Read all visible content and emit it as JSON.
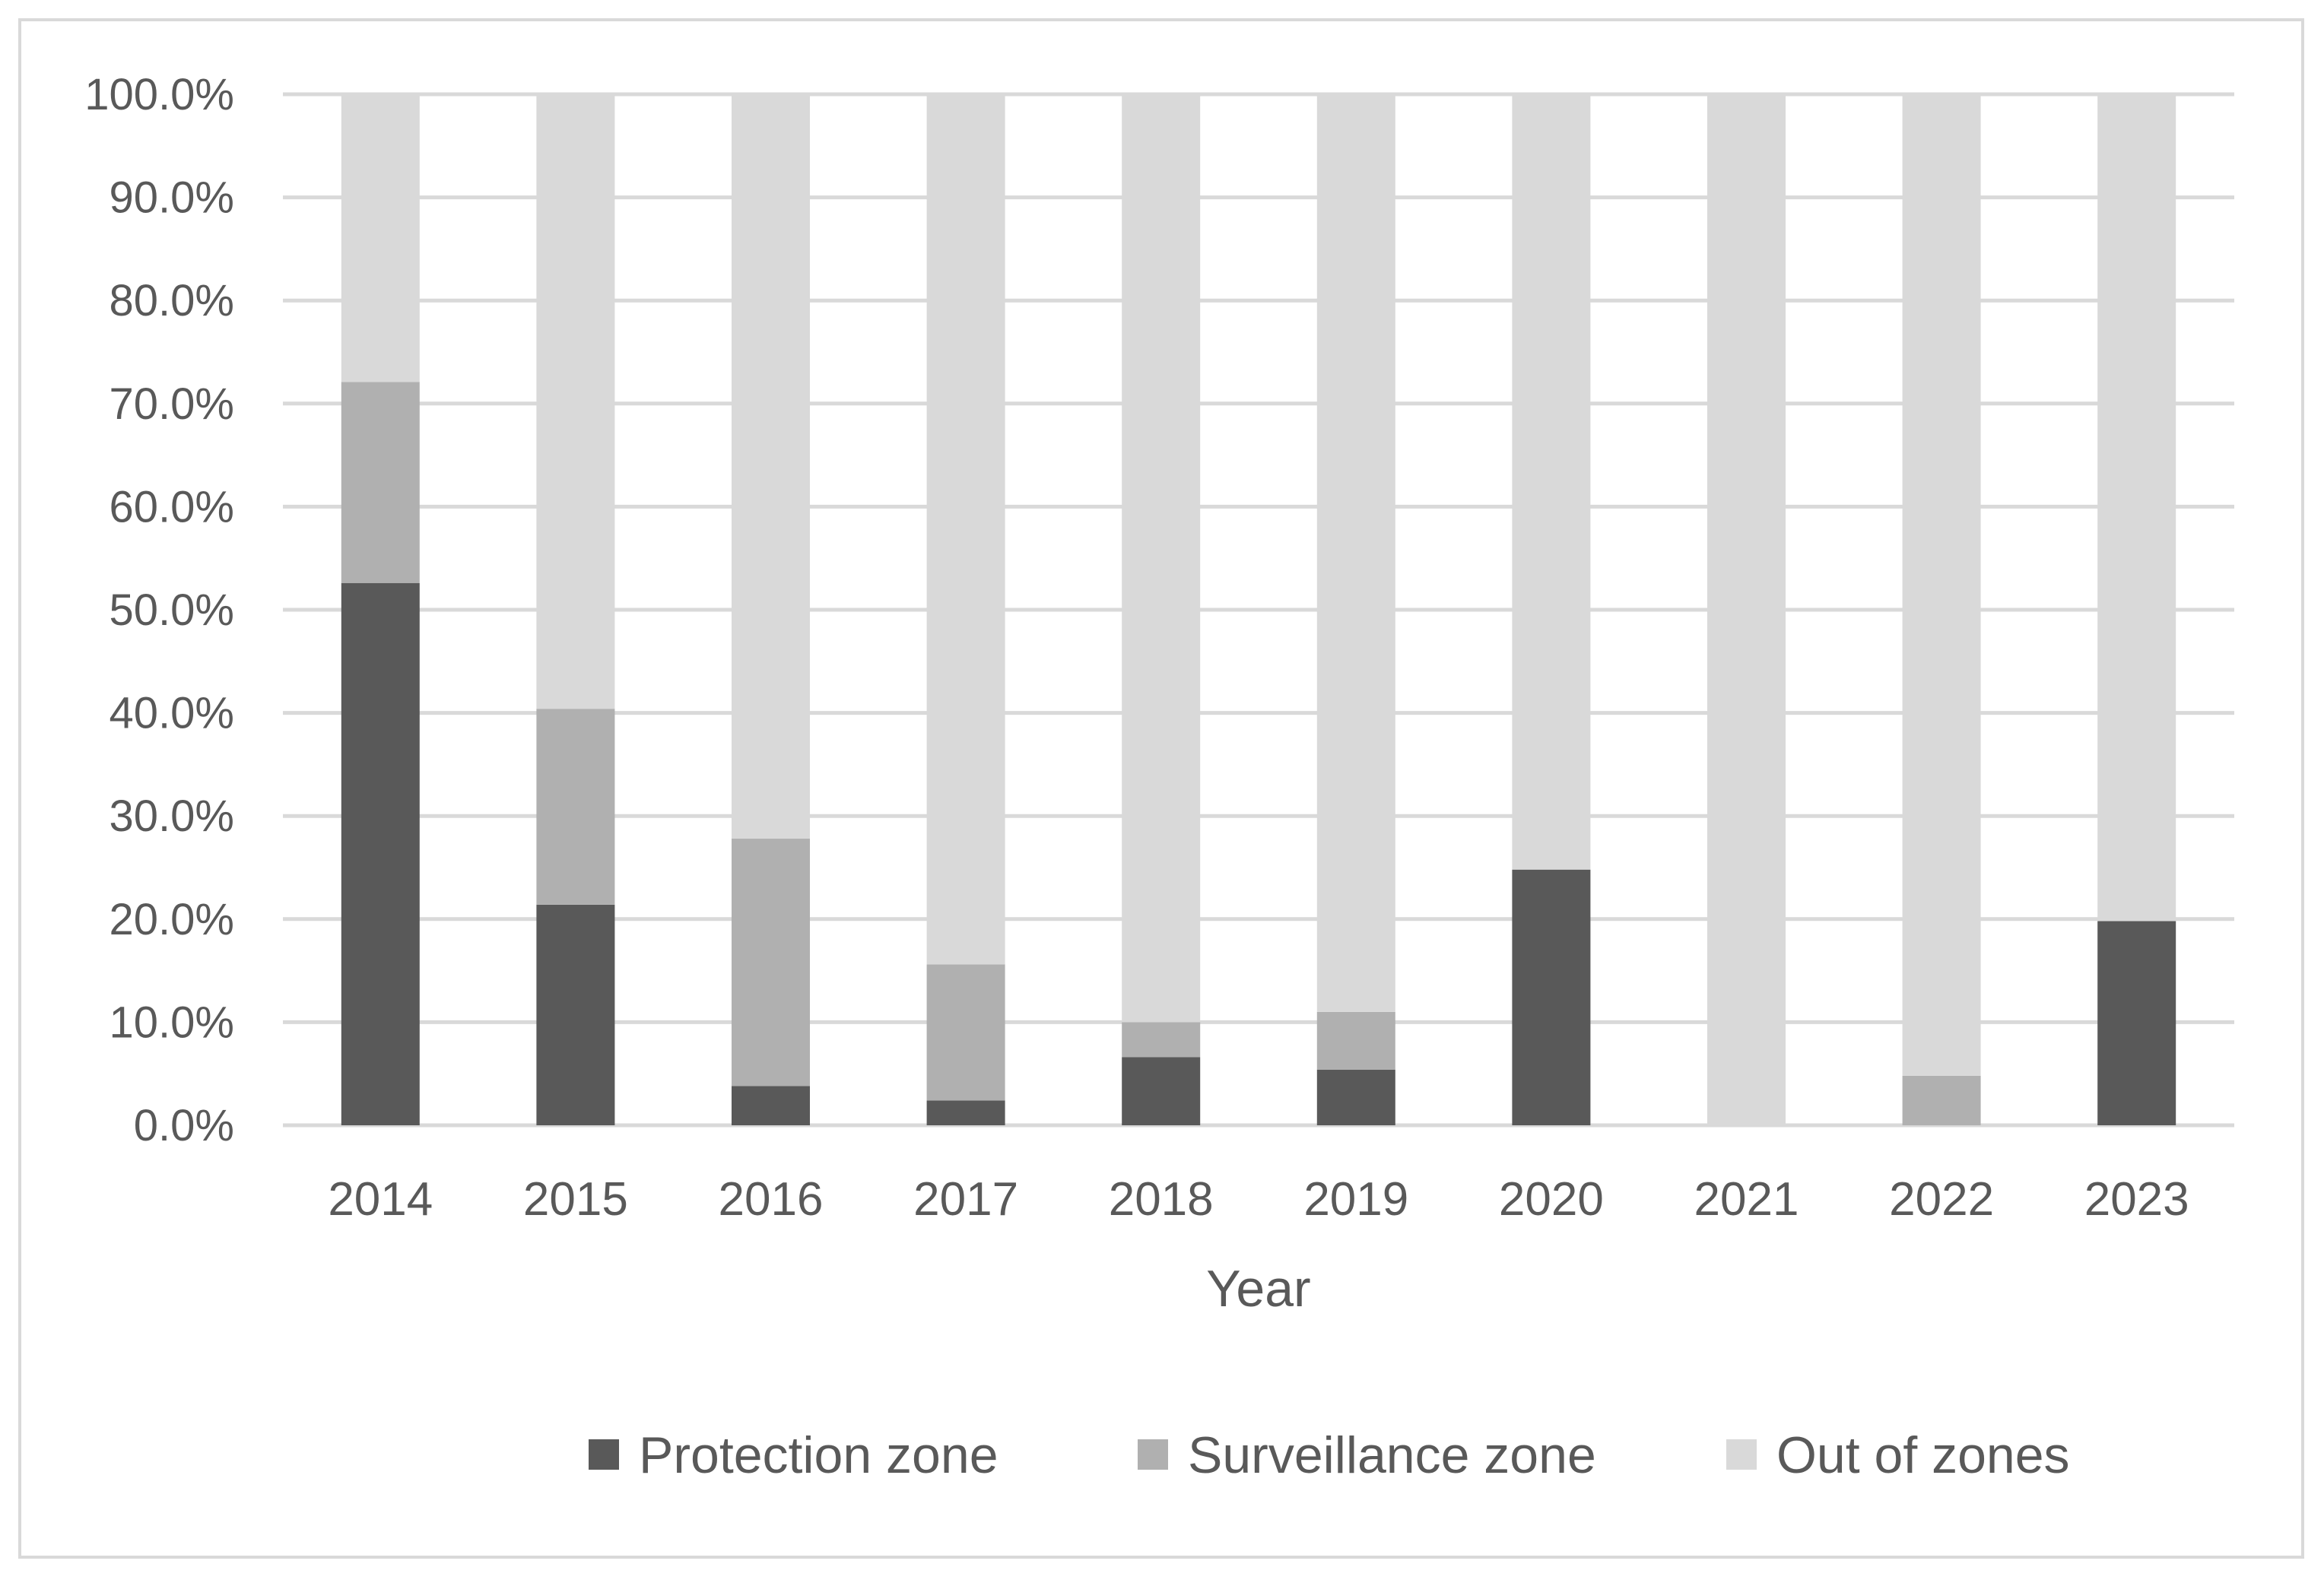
{
  "chart_data": {
    "type": "bar",
    "stacked": true,
    "title": "",
    "xlabel": "Year",
    "ylabel": "",
    "ylim": [
      0,
      100
    ],
    "yticks": [
      "0.0%",
      "10.0%",
      "20.0%",
      "30.0%",
      "40.0%",
      "50.0%",
      "60.0%",
      "70.0%",
      "80.0%",
      "90.0%",
      "100.0%"
    ],
    "categories": [
      "2014",
      "2015",
      "2016",
      "2017",
      "2018",
      "2019",
      "2020",
      "2021",
      "2022",
      "2023"
    ],
    "series": [
      {
        "name": "Protection zone",
        "color": "#595959",
        "values": [
          52.6,
          21.4,
          3.8,
          2.4,
          6.6,
          5.4,
          24.8,
          0.0,
          0.0,
          19.8
        ]
      },
      {
        "name": "Surveillance zone",
        "color": "#b0b0b0",
        "values": [
          19.5,
          19.0,
          24.0,
          13.2,
          3.4,
          5.6,
          0.0,
          0.0,
          4.8,
          0.0
        ]
      },
      {
        "name": "Out of zones",
        "color": "#d9d9d9",
        "values": [
          27.9,
          59.6,
          72.2,
          84.4,
          90.0,
          89.0,
          75.2,
          100.0,
          95.2,
          80.2
        ]
      }
    ],
    "legend_position": "bottom",
    "grid": true
  }
}
